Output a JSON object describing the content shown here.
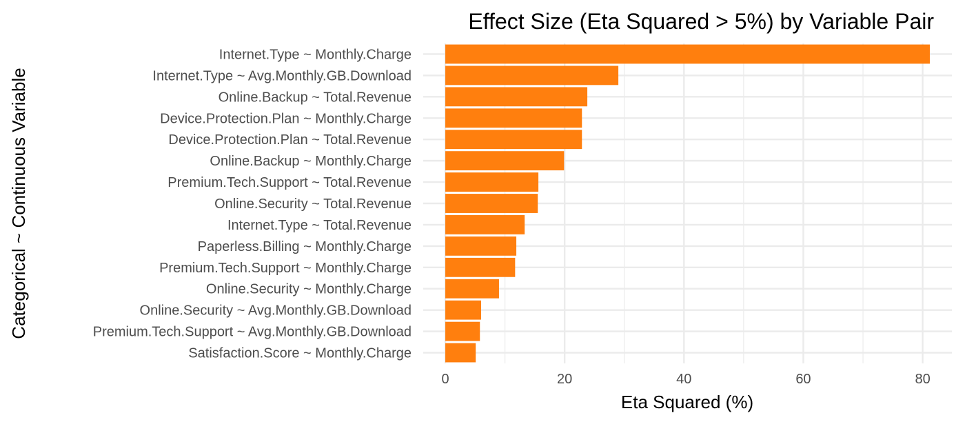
{
  "chart_data": {
    "type": "bar",
    "orientation": "horizontal",
    "title": "Effect Size (Eta Squared > 5%) by Variable Pair",
    "xlabel": "Eta Squared (%)",
    "ylabel": "Categorical ~ Continuous Variable",
    "xlim": [
      -3.7,
      84.9
    ],
    "xticks": [
      0,
      20,
      40,
      60,
      80
    ],
    "grid": true,
    "bar_color": "#FF7F0E",
    "grid_color": "#EBEBEB",
    "categories": [
      "Internet.Type ~ Monthly.Charge",
      "Internet.Type ~ Avg.Monthly.GB.Download",
      "Online.Backup ~ Total.Revenue",
      "Device.Protection.Plan ~ Monthly.Charge",
      "Device.Protection.Plan ~ Total.Revenue",
      "Online.Backup ~ Monthly.Charge",
      "Premium.Tech.Support ~ Total.Revenue",
      "Online.Security ~ Total.Revenue",
      "Internet.Type ~ Total.Revenue",
      "Paperless.Billing ~ Monthly.Charge",
      "Premium.Tech.Support ~ Monthly.Charge",
      "Online.Security ~ Monthly.Charge",
      "Online.Security ~ Avg.Monthly.GB.Download",
      "Premium.Tech.Support ~ Avg.Monthly.GB.Download",
      "Satisfaction.Score ~ Monthly.Charge"
    ],
    "values": [
      81.2,
      29.0,
      23.8,
      22.9,
      22.9,
      19.9,
      15.6,
      15.5,
      13.3,
      11.9,
      11.7,
      9.0,
      6.0,
      5.8,
      5.1
    ]
  }
}
